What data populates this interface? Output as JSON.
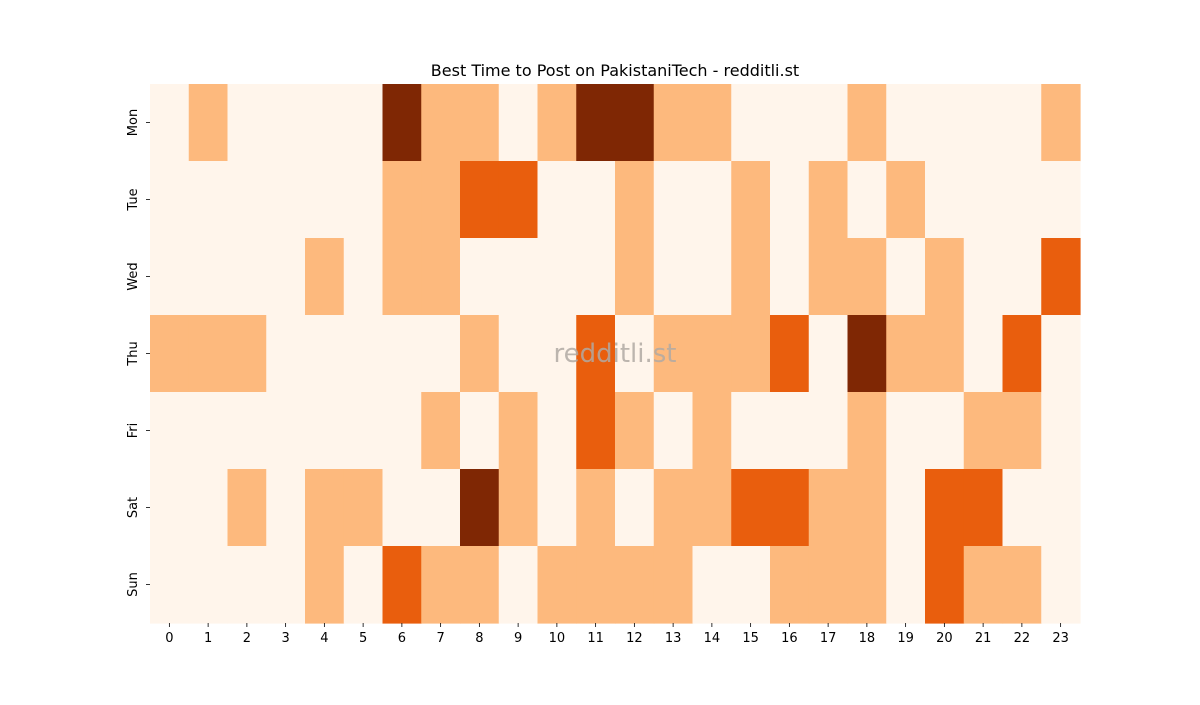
{
  "chart_data": {
    "type": "heatmap",
    "title": "Best Time to Post on PakistaniTech - redditli.st",
    "watermark": "redditli.st",
    "x_categories": [
      "0",
      "1",
      "2",
      "3",
      "4",
      "5",
      "6",
      "7",
      "8",
      "9",
      "10",
      "11",
      "12",
      "13",
      "14",
      "15",
      "16",
      "17",
      "18",
      "19",
      "20",
      "21",
      "22",
      "23"
    ],
    "y_categories": [
      "Mon",
      "Tue",
      "Wed",
      "Thu",
      "Fri",
      "Sat",
      "Sun"
    ],
    "values": [
      [
        0,
        1,
        0,
        0,
        0,
        0,
        3,
        1,
        1,
        0,
        1,
        3,
        3,
        1,
        1,
        0,
        0,
        0,
        1,
        0,
        0,
        0,
        0,
        1
      ],
      [
        0,
        0,
        0,
        0,
        0,
        0,
        1,
        1,
        2,
        2,
        0,
        0,
        1,
        0,
        0,
        1,
        0,
        1,
        0,
        1,
        0,
        0,
        0,
        0
      ],
      [
        0,
        0,
        0,
        0,
        1,
        0,
        1,
        1,
        0,
        0,
        0,
        0,
        1,
        0,
        0,
        1,
        0,
        1,
        1,
        0,
        1,
        0,
        0,
        2
      ],
      [
        1,
        1,
        1,
        0,
        0,
        0,
        0,
        0,
        1,
        0,
        0,
        2,
        0,
        1,
        1,
        1,
        2,
        0,
        3,
        1,
        1,
        0,
        2,
        0
      ],
      [
        0,
        0,
        0,
        0,
        0,
        0,
        0,
        1,
        0,
        1,
        0,
        2,
        1,
        0,
        1,
        0,
        0,
        0,
        1,
        0,
        0,
        1,
        1,
        0
      ],
      [
        0,
        0,
        1,
        0,
        1,
        1,
        0,
        0,
        3,
        1,
        0,
        1,
        0,
        1,
        1,
        2,
        2,
        1,
        1,
        0,
        2,
        2,
        0,
        0
      ],
      [
        0,
        0,
        0,
        0,
        1,
        0,
        2,
        1,
        1,
        0,
        1,
        1,
        1,
        1,
        0,
        0,
        1,
        1,
        1,
        0,
        2,
        1,
        1,
        0
      ]
    ],
    "colormap": [
      "#fff5eb",
      "#fdb97d",
      "#e95e0d",
      "#7f2704"
    ],
    "colorbar": false,
    "grid": false
  }
}
